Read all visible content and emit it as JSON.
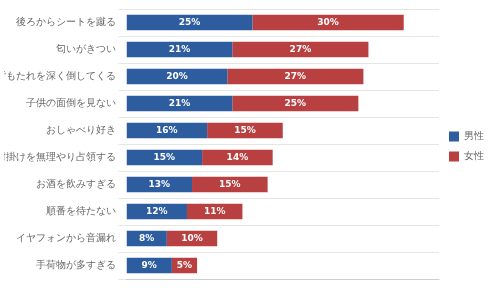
{
  "chart_data": {
    "type": "bar",
    "orientation": "horizontal",
    "stacked": true,
    "categories": [
      "後ろからシートを蹴る",
      "匂いがきつい",
      "背もたれを深く倒してくる",
      "子供の面倒を見ない",
      "おしゃべり好き",
      "肘掛けを無理やり占領する",
      "お酒を飲みすぎる",
      "順番を待たない",
      "イヤフォンから音漏れ",
      "手荷物が多すぎる"
    ],
    "series": [
      {
        "name": "男性",
        "color": "#2E5D9F",
        "values": [
          25,
          21,
          20,
          21,
          16,
          15,
          13,
          12,
          8,
          9
        ],
        "value_labels": [
          "25%",
          "21%",
          "20%",
          "21%",
          "16%",
          "15%",
          "13%",
          "12%",
          "8%",
          "9%"
        ]
      },
      {
        "name": "女性",
        "color": "#B94040",
        "values": [
          30,
          27,
          27,
          25,
          15,
          14,
          15,
          11,
          10,
          5
        ],
        "value_labels": [
          "30%",
          "27%",
          "27%",
          "25%",
          "15%",
          "14%",
          "15%",
          "11%",
          "10%",
          "5%"
        ]
      }
    ],
    "xlim": [
      0,
      62
    ],
    "tick_labels": "y",
    "legend": "right",
    "data_labels": true,
    "grid": true
  }
}
